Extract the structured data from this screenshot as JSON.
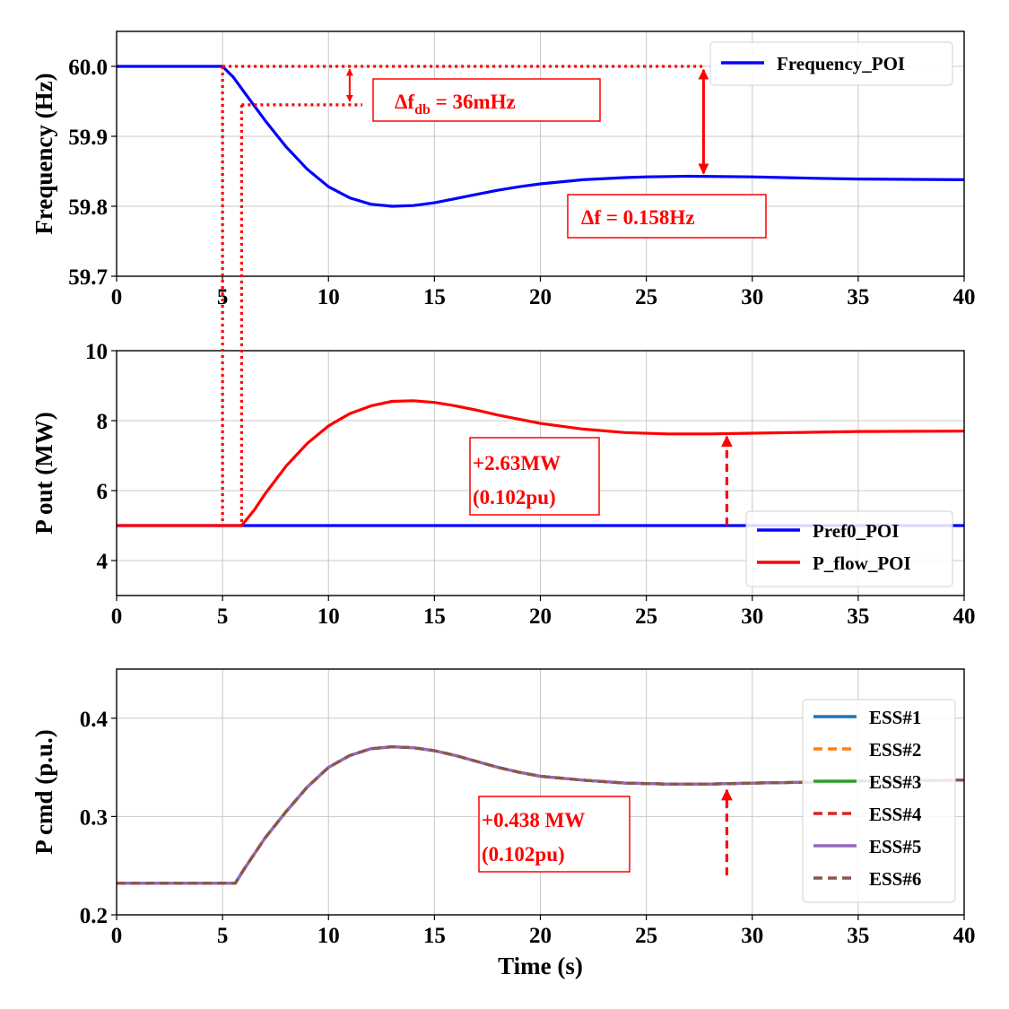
{
  "chart_data": [
    {
      "type": "line",
      "id": "freq",
      "ylabel": "Frequency (Hz)",
      "xlabel": "",
      "xlim": [
        0,
        40
      ],
      "ylim": [
        59.7,
        60.05
      ],
      "xticks": [
        "0",
        "5",
        "10",
        "15",
        "20",
        "25",
        "30",
        "35",
        "40"
      ],
      "yticks": [
        "59.7",
        "59.8",
        "59.9",
        "60.0"
      ],
      "grid": true,
      "legend": "top-right",
      "series": [
        {
          "name": "Frequency_POI",
          "color": "#0000ff",
          "dash": "solid",
          "points": [
            [
              0,
              60.0
            ],
            [
              5,
              60.0
            ],
            [
              5.5,
              59.985
            ],
            [
              6,
              59.964
            ],
            [
              7,
              59.923
            ],
            [
              8,
              59.885
            ],
            [
              9,
              59.853
            ],
            [
              10,
              59.828
            ],
            [
              11,
              59.812
            ],
            [
              12,
              59.803
            ],
            [
              13,
              59.8
            ],
            [
              14,
              59.801
            ],
            [
              15,
              59.805
            ],
            [
              16,
              59.811
            ],
            [
              17,
              59.817
            ],
            [
              18,
              59.823
            ],
            [
              19,
              59.828
            ],
            [
              20,
              59.832
            ],
            [
              22,
              59.838
            ],
            [
              24,
              59.841
            ],
            [
              25,
              59.842
            ],
            [
              27,
              59.843
            ],
            [
              30,
              59.842
            ],
            [
              33,
              59.84
            ],
            [
              35,
              59.839
            ],
            [
              40,
              59.838
            ]
          ]
        }
      ],
      "annotations": [
        {
          "text_main": "Δf",
          "text_sub": "db",
          "text_tail": " = 36mHz"
        },
        {
          "text": "Δf = 0.158Hz"
        }
      ]
    },
    {
      "type": "line",
      "id": "pout",
      "ylabel": "P out (MW)",
      "xlabel": "",
      "xlim": [
        0,
        40
      ],
      "ylim": [
        3,
        10
      ],
      "xticks": [
        "0",
        "5",
        "10",
        "15",
        "20",
        "25",
        "30",
        "35",
        "40"
      ],
      "yticks": [
        "4",
        "6",
        "8",
        "10"
      ],
      "grid": true,
      "legend": "bottom-right",
      "series": [
        {
          "name": "Pref0_POI",
          "color": "#0000ff",
          "dash": "solid",
          "points": [
            [
              0,
              5.0
            ],
            [
              40,
              5.0
            ]
          ]
        },
        {
          "name": "P_flow_POI",
          "color": "#ff0000",
          "dash": "solid",
          "points": [
            [
              0,
              5.0
            ],
            [
              5.9,
              5.0
            ],
            [
              6.5,
              5.45
            ],
            [
              7,
              5.9
            ],
            [
              8,
              6.7
            ],
            [
              9,
              7.35
            ],
            [
              10,
              7.85
            ],
            [
              11,
              8.2
            ],
            [
              12,
              8.42
            ],
            [
              13,
              8.55
            ],
            [
              14,
              8.57
            ],
            [
              15,
              8.52
            ],
            [
              16,
              8.42
            ],
            [
              17,
              8.3
            ],
            [
              18,
              8.16
            ],
            [
              19,
              8.04
            ],
            [
              20,
              7.92
            ],
            [
              22,
              7.76
            ],
            [
              24,
              7.66
            ],
            [
              26,
              7.62
            ],
            [
              28,
              7.62
            ],
            [
              30,
              7.64
            ],
            [
              33,
              7.67
            ],
            [
              35,
              7.69
            ],
            [
              40,
              7.7
            ]
          ]
        }
      ],
      "annotations": [
        {
          "lines": [
            "+2.63MW",
            "(0.102pu)"
          ]
        }
      ]
    },
    {
      "type": "line",
      "id": "pcmd",
      "ylabel": "P cmd (p.u.)",
      "xlabel": "Time (s)",
      "xlim": [
        0,
        40
      ],
      "ylim": [
        0.2,
        0.45
      ],
      "xticks": [
        "0",
        "5",
        "10",
        "15",
        "20",
        "25",
        "30",
        "35",
        "40"
      ],
      "yticks": [
        "0.2",
        "0.3",
        "0.4"
      ],
      "grid": true,
      "legend": "right",
      "series": [
        {
          "name": "ESS#1",
          "color": "#1f77b4",
          "dash": "solid",
          "points": [
            [
              0,
              0.232
            ],
            [
              5.6,
              0.232
            ],
            [
              6,
              0.246
            ],
            [
              7,
              0.278
            ],
            [
              8,
              0.305
            ],
            [
              9,
              0.33
            ],
            [
              10,
              0.35
            ],
            [
              11,
              0.362
            ],
            [
              12,
              0.369
            ],
            [
              13,
              0.371
            ],
            [
              14,
              0.37
            ],
            [
              15,
              0.367
            ],
            [
              16,
              0.362
            ],
            [
              17,
              0.356
            ],
            [
              18,
              0.35
            ],
            [
              19,
              0.345
            ],
            [
              20,
              0.341
            ],
            [
              22,
              0.337
            ],
            [
              24,
              0.334
            ],
            [
              26,
              0.333
            ],
            [
              28,
              0.333
            ],
            [
              30,
              0.334
            ],
            [
              33,
              0.335
            ],
            [
              35,
              0.336
            ],
            [
              40,
              0.337
            ]
          ]
        },
        {
          "name": "ESS#2",
          "color": "#ff7f0e",
          "dash": "dashed",
          "points": [
            [
              0,
              0.232
            ],
            [
              5.6,
              0.232
            ],
            [
              6,
              0.246
            ],
            [
              7,
              0.278
            ],
            [
              8,
              0.305
            ],
            [
              9,
              0.33
            ],
            [
              10,
              0.35
            ],
            [
              11,
              0.362
            ],
            [
              12,
              0.369
            ],
            [
              13,
              0.371
            ],
            [
              14,
              0.37
            ],
            [
              15,
              0.367
            ],
            [
              16,
              0.362
            ],
            [
              17,
              0.356
            ],
            [
              18,
              0.35
            ],
            [
              19,
              0.345
            ],
            [
              20,
              0.341
            ],
            [
              22,
              0.337
            ],
            [
              24,
              0.334
            ],
            [
              26,
              0.333
            ],
            [
              28,
              0.333
            ],
            [
              30,
              0.334
            ],
            [
              33,
              0.335
            ],
            [
              35,
              0.336
            ],
            [
              40,
              0.337
            ]
          ]
        },
        {
          "name": "ESS#3",
          "color": "#2ca02c",
          "dash": "solid",
          "points": [
            [
              0,
              0.232
            ],
            [
              5.6,
              0.232
            ],
            [
              6,
              0.246
            ],
            [
              7,
              0.278
            ],
            [
              8,
              0.305
            ],
            [
              9,
              0.33
            ],
            [
              10,
              0.35
            ],
            [
              11,
              0.362
            ],
            [
              12,
              0.369
            ],
            [
              13,
              0.371
            ],
            [
              14,
              0.37
            ],
            [
              15,
              0.367
            ],
            [
              16,
              0.362
            ],
            [
              17,
              0.356
            ],
            [
              18,
              0.35
            ],
            [
              19,
              0.345
            ],
            [
              20,
              0.341
            ],
            [
              22,
              0.337
            ],
            [
              24,
              0.334
            ],
            [
              26,
              0.333
            ],
            [
              28,
              0.333
            ],
            [
              30,
              0.334
            ],
            [
              33,
              0.335
            ],
            [
              35,
              0.336
            ],
            [
              40,
              0.337
            ]
          ]
        },
        {
          "name": "ESS#4",
          "color": "#d62728",
          "dash": "dashed",
          "points": [
            [
              0,
              0.232
            ],
            [
              5.6,
              0.232
            ],
            [
              6,
              0.246
            ],
            [
              7,
              0.278
            ],
            [
              8,
              0.305
            ],
            [
              9,
              0.33
            ],
            [
              10,
              0.35
            ],
            [
              11,
              0.362
            ],
            [
              12,
              0.369
            ],
            [
              13,
              0.371
            ],
            [
              14,
              0.37
            ],
            [
              15,
              0.367
            ],
            [
              16,
              0.362
            ],
            [
              17,
              0.356
            ],
            [
              18,
              0.35
            ],
            [
              19,
              0.345
            ],
            [
              20,
              0.341
            ],
            [
              22,
              0.337
            ],
            [
              24,
              0.334
            ],
            [
              26,
              0.333
            ],
            [
              28,
              0.333
            ],
            [
              30,
              0.334
            ],
            [
              33,
              0.335
            ],
            [
              35,
              0.336
            ],
            [
              40,
              0.337
            ]
          ]
        },
        {
          "name": "ESS#5",
          "color": "#9467bd",
          "dash": "solid",
          "points": [
            [
              0,
              0.232
            ],
            [
              5.6,
              0.232
            ],
            [
              6,
              0.246
            ],
            [
              7,
              0.278
            ],
            [
              8,
              0.305
            ],
            [
              9,
              0.33
            ],
            [
              10,
              0.35
            ],
            [
              11,
              0.362
            ],
            [
              12,
              0.369
            ],
            [
              13,
              0.371
            ],
            [
              14,
              0.37
            ],
            [
              15,
              0.367
            ],
            [
              16,
              0.362
            ],
            [
              17,
              0.356
            ],
            [
              18,
              0.35
            ],
            [
              19,
              0.345
            ],
            [
              20,
              0.341
            ],
            [
              22,
              0.337
            ],
            [
              24,
              0.334
            ],
            [
              26,
              0.333
            ],
            [
              28,
              0.333
            ],
            [
              30,
              0.334
            ],
            [
              33,
              0.335
            ],
            [
              35,
              0.336
            ],
            [
              40,
              0.337
            ]
          ]
        },
        {
          "name": "ESS#6",
          "color": "#8c564b",
          "dash": "dashed",
          "points": [
            [
              0,
              0.232
            ],
            [
              5.6,
              0.232
            ],
            [
              6,
              0.246
            ],
            [
              7,
              0.278
            ],
            [
              8,
              0.305
            ],
            [
              9,
              0.33
            ],
            [
              10,
              0.35
            ],
            [
              11,
              0.362
            ],
            [
              12,
              0.369
            ],
            [
              13,
              0.371
            ],
            [
              14,
              0.37
            ],
            [
              15,
              0.367
            ],
            [
              16,
              0.362
            ],
            [
              17,
              0.356
            ],
            [
              18,
              0.35
            ],
            [
              19,
              0.345
            ],
            [
              20,
              0.341
            ],
            [
              22,
              0.337
            ],
            [
              24,
              0.334
            ],
            [
              26,
              0.333
            ],
            [
              28,
              0.333
            ],
            [
              30,
              0.334
            ],
            [
              33,
              0.335
            ],
            [
              35,
              0.336
            ],
            [
              40,
              0.337
            ]
          ]
        }
      ],
      "annotations": [
        {
          "lines": [
            "+0.438 MW",
            "(0.102pu)"
          ]
        }
      ]
    }
  ],
  "annotation_color": "#ff0000"
}
